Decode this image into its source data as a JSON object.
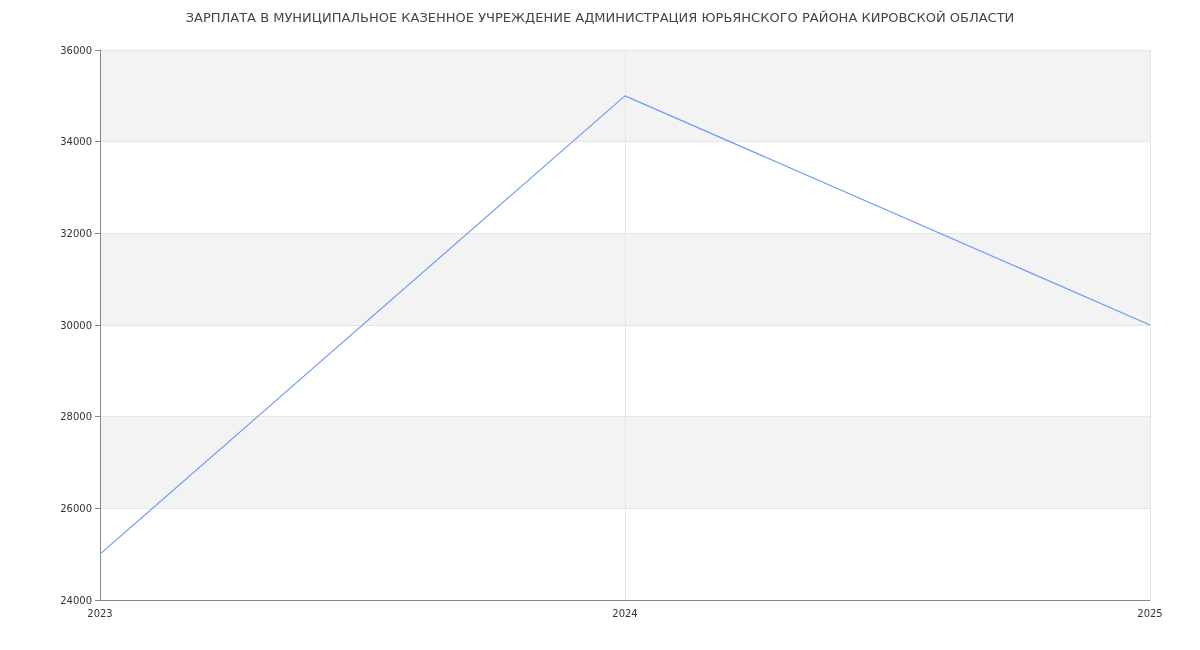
{
  "chart_data": {
    "type": "line",
    "title": "ЗАРПЛАТА В МУНИЦИПАЛЬНОЕ КАЗЕННОЕ УЧРЕЖДЕНИЕ АДМИНИСТРАЦИЯ ЮРЬЯНСКОГО РАЙОНА КИРОВСКОЙ ОБЛАСТИ",
    "categories": [
      "2023",
      "2024",
      "2025"
    ],
    "series": [
      {
        "color": "#6f9cf5",
        "values": [
          25000,
          35000,
          30000
        ]
      }
    ],
    "ylim": [
      24000,
      36000
    ],
    "yticks": [
      24000,
      26000,
      28000,
      30000,
      32000,
      34000,
      36000
    ],
    "grid": true,
    "marker": "none",
    "line_style": "solid"
  }
}
